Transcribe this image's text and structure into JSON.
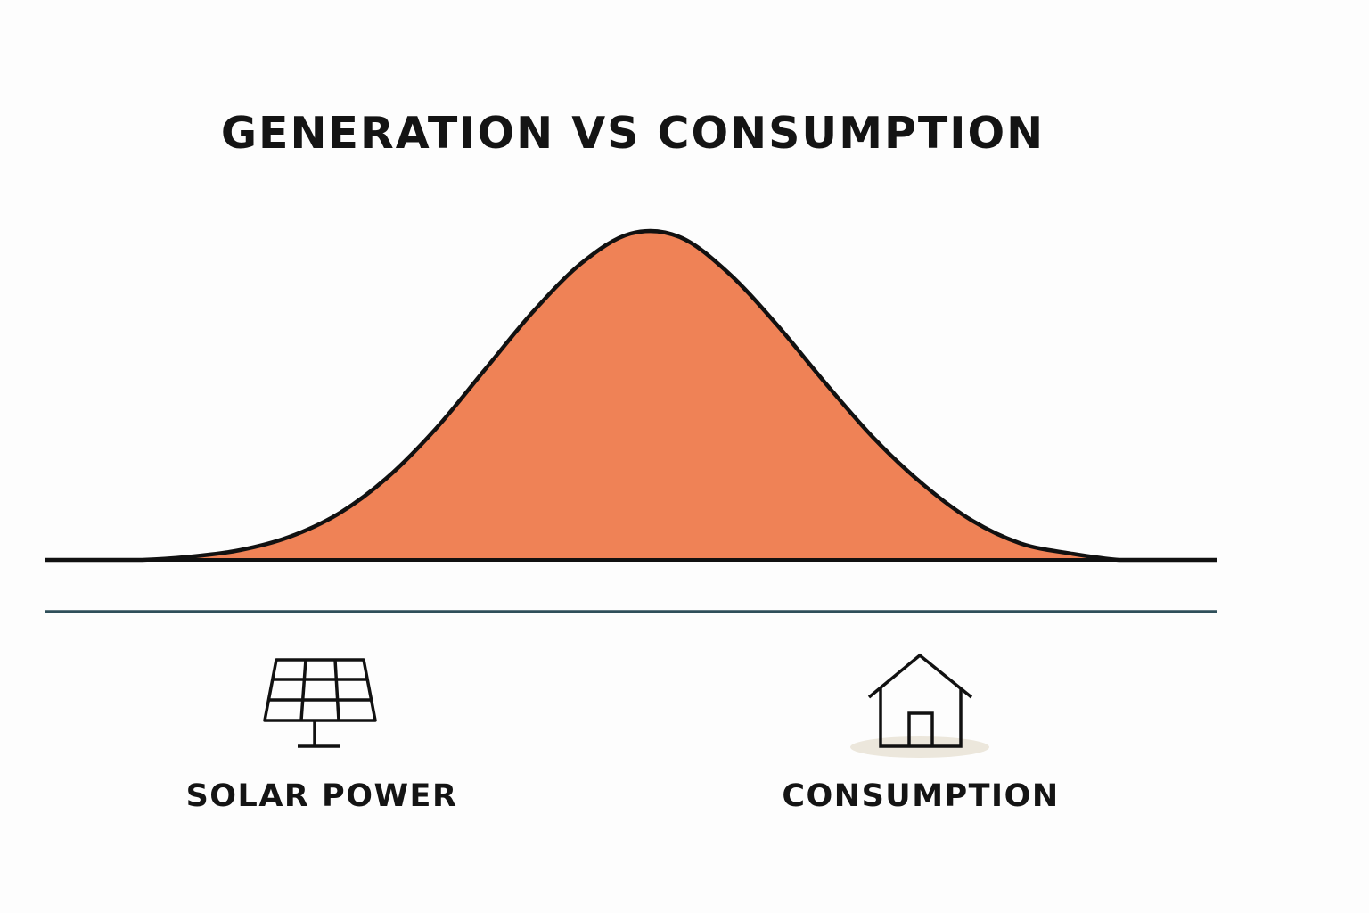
{
  "chart_data": {
    "type": "area",
    "title": "GENERATION VS CONSUMPTION",
    "xlabel": "",
    "ylabel": "",
    "grid": false,
    "series": [
      {
        "name": "SOLAR POWER",
        "shape": "bell curve",
        "x": [
          0,
          1,
          2,
          3,
          4,
          5,
          6,
          7,
          8,
          9,
          10,
          11,
          12,
          13,
          14,
          15,
          16,
          17,
          18,
          19,
          20,
          21,
          22,
          23,
          24
        ],
        "values": [
          0,
          0,
          0,
          0.01,
          0.03,
          0.07,
          0.14,
          0.25,
          0.4,
          0.58,
          0.76,
          0.91,
          1.0,
          0.99,
          0.88,
          0.72,
          0.54,
          0.37,
          0.23,
          0.12,
          0.05,
          0.02,
          0,
          0,
          0
        ],
        "color": "#ef8256",
        "icon": "solar-panel-icon"
      },
      {
        "name": "CONSUMPTION",
        "shape": "flat line",
        "x": [
          0,
          24
        ],
        "values": [
          0,
          0
        ],
        "color": "#2f4f5a",
        "icon": "house-icon"
      }
    ],
    "xlim": [
      0,
      24
    ],
    "ylim": [
      0,
      1
    ]
  },
  "colors": {
    "background": "#fdfdfd",
    "generation_fill": "#ef8256",
    "outline": "#111111",
    "consumption_line": "#2f4f5a",
    "house_shadow": "#ece7dc"
  }
}
